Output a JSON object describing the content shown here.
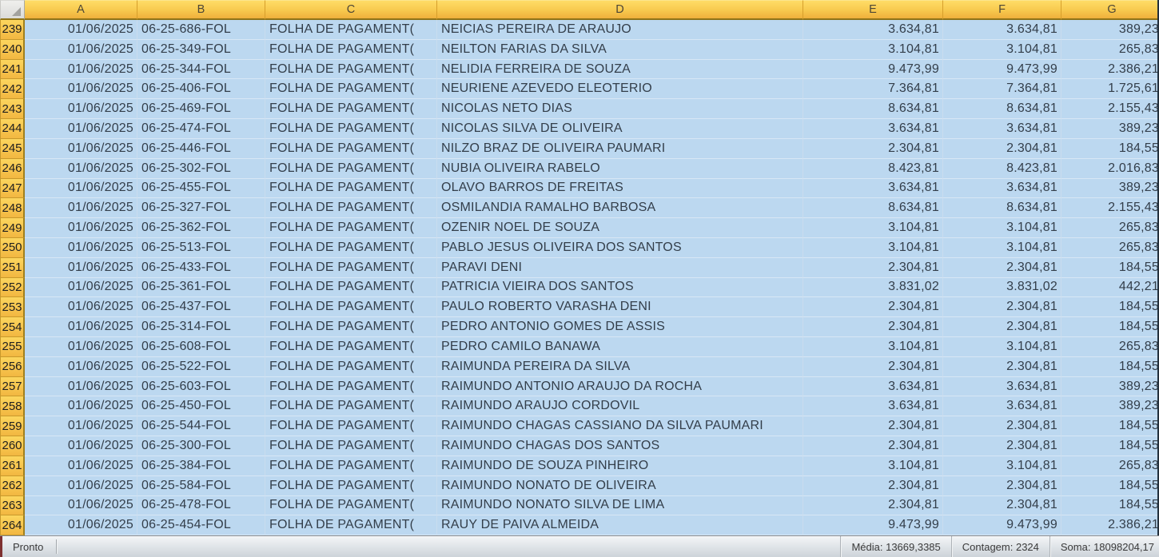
{
  "grid": {
    "columns": [
      "A",
      "B",
      "C",
      "D",
      "E",
      "F",
      "G"
    ],
    "rows": [
      {
        "n": "239",
        "a": "01/06/2025",
        "b": "06-25-686-FOL",
        "c": "FOLHA DE PAGAMENT(",
        "d": "NEICIAS PEREIRA DE ARAUJO",
        "e": "3.634,81",
        "f": "3.634,81",
        "g": "389,23"
      },
      {
        "n": "240",
        "a": "01/06/2025",
        "b": "06-25-349-FOL",
        "c": "FOLHA DE PAGAMENT(",
        "d": "NEILTON FARIAS DA SILVA",
        "e": "3.104,81",
        "f": "3.104,81",
        "g": "265,83"
      },
      {
        "n": "241",
        "a": "01/06/2025",
        "b": "06-25-344-FOL",
        "c": "FOLHA DE PAGAMENT(",
        "d": "NELIDIA FERREIRA DE SOUZA",
        "e": "9.473,99",
        "f": "9.473,99",
        "g": "2.386,21"
      },
      {
        "n": "242",
        "a": "01/06/2025",
        "b": "06-25-406-FOL",
        "c": "FOLHA DE PAGAMENT(",
        "d": "NEURIENE AZEVEDO ELEOTERIO",
        "e": "7.364,81",
        "f": "7.364,81",
        "g": "1.725,61"
      },
      {
        "n": "243",
        "a": "01/06/2025",
        "b": "06-25-469-FOL",
        "c": "FOLHA DE PAGAMENT(",
        "d": "NICOLAS NETO DIAS",
        "e": "8.634,81",
        "f": "8.634,81",
        "g": "2.155,43"
      },
      {
        "n": "244",
        "a": "01/06/2025",
        "b": "06-25-474-FOL",
        "c": "FOLHA DE PAGAMENT(",
        "d": "NICOLAS SILVA DE OLIVEIRA",
        "e": "3.634,81",
        "f": "3.634,81",
        "g": "389,23"
      },
      {
        "n": "245",
        "a": "01/06/2025",
        "b": "06-25-446-FOL",
        "c": "FOLHA DE PAGAMENT(",
        "d": "NILZO BRAZ DE OLIVEIRA PAUMARI",
        "e": "2.304,81",
        "f": "2.304,81",
        "g": "184,55"
      },
      {
        "n": "246",
        "a": "01/06/2025",
        "b": "06-25-302-FOL",
        "c": "FOLHA DE PAGAMENT(",
        "d": "NUBIA OLIVEIRA RABELO",
        "e": "8.423,81",
        "f": "8.423,81",
        "g": "2.016,83"
      },
      {
        "n": "247",
        "a": "01/06/2025",
        "b": "06-25-455-FOL",
        "c": "FOLHA DE PAGAMENT(",
        "d": "OLAVO BARROS DE FREITAS",
        "e": "3.634,81",
        "f": "3.634,81",
        "g": "389,23"
      },
      {
        "n": "248",
        "a": "01/06/2025",
        "b": "06-25-327-FOL",
        "c": "FOLHA DE PAGAMENT(",
        "d": "OSMILANDIA RAMALHO BARBOSA",
        "e": "8.634,81",
        "f": "8.634,81",
        "g": "2.155,43"
      },
      {
        "n": "249",
        "a": "01/06/2025",
        "b": "06-25-362-FOL",
        "c": "FOLHA DE PAGAMENT(",
        "d": "OZENIR NOEL DE SOUZA",
        "e": "3.104,81",
        "f": "3.104,81",
        "g": "265,83"
      },
      {
        "n": "250",
        "a": "01/06/2025",
        "b": "06-25-513-FOL",
        "c": "FOLHA DE PAGAMENT(",
        "d": "PABLO JESUS OLIVEIRA DOS SANTOS",
        "e": "3.104,81",
        "f": "3.104,81",
        "g": "265,83"
      },
      {
        "n": "251",
        "a": "01/06/2025",
        "b": "06-25-433-FOL",
        "c": "FOLHA DE PAGAMENT(",
        "d": "PARAVI DENI",
        "e": "2.304,81",
        "f": "2.304,81",
        "g": "184,55"
      },
      {
        "n": "252",
        "a": "01/06/2025",
        "b": "06-25-361-FOL",
        "c": "FOLHA DE PAGAMENT(",
        "d": "PATRICIA VIEIRA DOS SANTOS",
        "e": "3.831,02",
        "f": "3.831,02",
        "g": "442,21"
      },
      {
        "n": "253",
        "a": "01/06/2025",
        "b": "06-25-437-FOL",
        "c": "FOLHA DE PAGAMENT(",
        "d": "PAULO ROBERTO VARASHA DENI",
        "e": "2.304,81",
        "f": "2.304,81",
        "g": "184,55"
      },
      {
        "n": "254",
        "a": "01/06/2025",
        "b": "06-25-314-FOL",
        "c": "FOLHA DE PAGAMENT(",
        "d": "PEDRO ANTONIO GOMES DE ASSIS",
        "e": "2.304,81",
        "f": "2.304,81",
        "g": "184,55"
      },
      {
        "n": "255",
        "a": "01/06/2025",
        "b": "06-25-608-FOL",
        "c": "FOLHA DE PAGAMENT(",
        "d": "PEDRO CAMILO BANAWA",
        "e": "3.104,81",
        "f": "3.104,81",
        "g": "265,83"
      },
      {
        "n": "256",
        "a": "01/06/2025",
        "b": "06-25-522-FOL",
        "c": "FOLHA DE PAGAMENT(",
        "d": "RAIMUNDA PEREIRA DA SILVA",
        "e": "2.304,81",
        "f": "2.304,81",
        "g": "184,55"
      },
      {
        "n": "257",
        "a": "01/06/2025",
        "b": "06-25-603-FOL",
        "c": "FOLHA DE PAGAMENT(",
        "d": "RAIMUNDO ANTONIO ARAUJO DA ROCHA",
        "e": "3.634,81",
        "f": "3.634,81",
        "g": "389,23"
      },
      {
        "n": "258",
        "a": "01/06/2025",
        "b": "06-25-450-FOL",
        "c": "FOLHA DE PAGAMENT(",
        "d": "RAIMUNDO ARAUJO CORDOVIL",
        "e": "3.634,81",
        "f": "3.634,81",
        "g": "389,23"
      },
      {
        "n": "259",
        "a": "01/06/2025",
        "b": "06-25-544-FOL",
        "c": "FOLHA DE PAGAMENT(",
        "d": "RAIMUNDO CHAGAS CASSIANO DA SILVA PAUMARI",
        "e": "2.304,81",
        "f": "2.304,81",
        "g": "184,55"
      },
      {
        "n": "260",
        "a": "01/06/2025",
        "b": "06-25-300-FOL",
        "c": "FOLHA DE PAGAMENT(",
        "d": "RAIMUNDO CHAGAS DOS SANTOS",
        "e": "2.304,81",
        "f": "2.304,81",
        "g": "184,55"
      },
      {
        "n": "261",
        "a": "01/06/2025",
        "b": "06-25-384-FOL",
        "c": "FOLHA DE PAGAMENT(",
        "d": "RAIMUNDO DE SOUZA PINHEIRO",
        "e": "3.104,81",
        "f": "3.104,81",
        "g": "265,83"
      },
      {
        "n": "262",
        "a": "01/06/2025",
        "b": "06-25-584-FOL",
        "c": "FOLHA DE PAGAMENT(",
        "d": "RAIMUNDO NONATO DE OLIVEIRA",
        "e": "2.304,81",
        "f": "2.304,81",
        "g": "184,55"
      },
      {
        "n": "263",
        "a": "01/06/2025",
        "b": "06-25-478-FOL",
        "c": "FOLHA DE PAGAMENT(",
        "d": "RAIMUNDO NONATO SILVA DE LIMA",
        "e": "2.304,81",
        "f": "2.304,81",
        "g": "184,55"
      },
      {
        "n": "264",
        "a": "01/06/2025",
        "b": "06-25-454-FOL",
        "c": "FOLHA DE PAGAMENT(",
        "d": "RAUY DE PAIVA ALMEIDA",
        "e": "9.473,99",
        "f": "9.473,99",
        "g": "2.386,21"
      }
    ]
  },
  "status_bar": {
    "mode": "Pronto",
    "stats": [
      "Média: 13669,3385",
      "Contagem: 2324",
      "Soma: 18098204,17"
    ]
  },
  "colors": {
    "header_gold": "#F8CA4F",
    "header_border": "#8F7418",
    "cell_selected_blue": "#BCD8F0",
    "cell_text": "#333E4A",
    "status_gray": "#DCE1E6",
    "status_accent_red": "#7E3030"
  }
}
